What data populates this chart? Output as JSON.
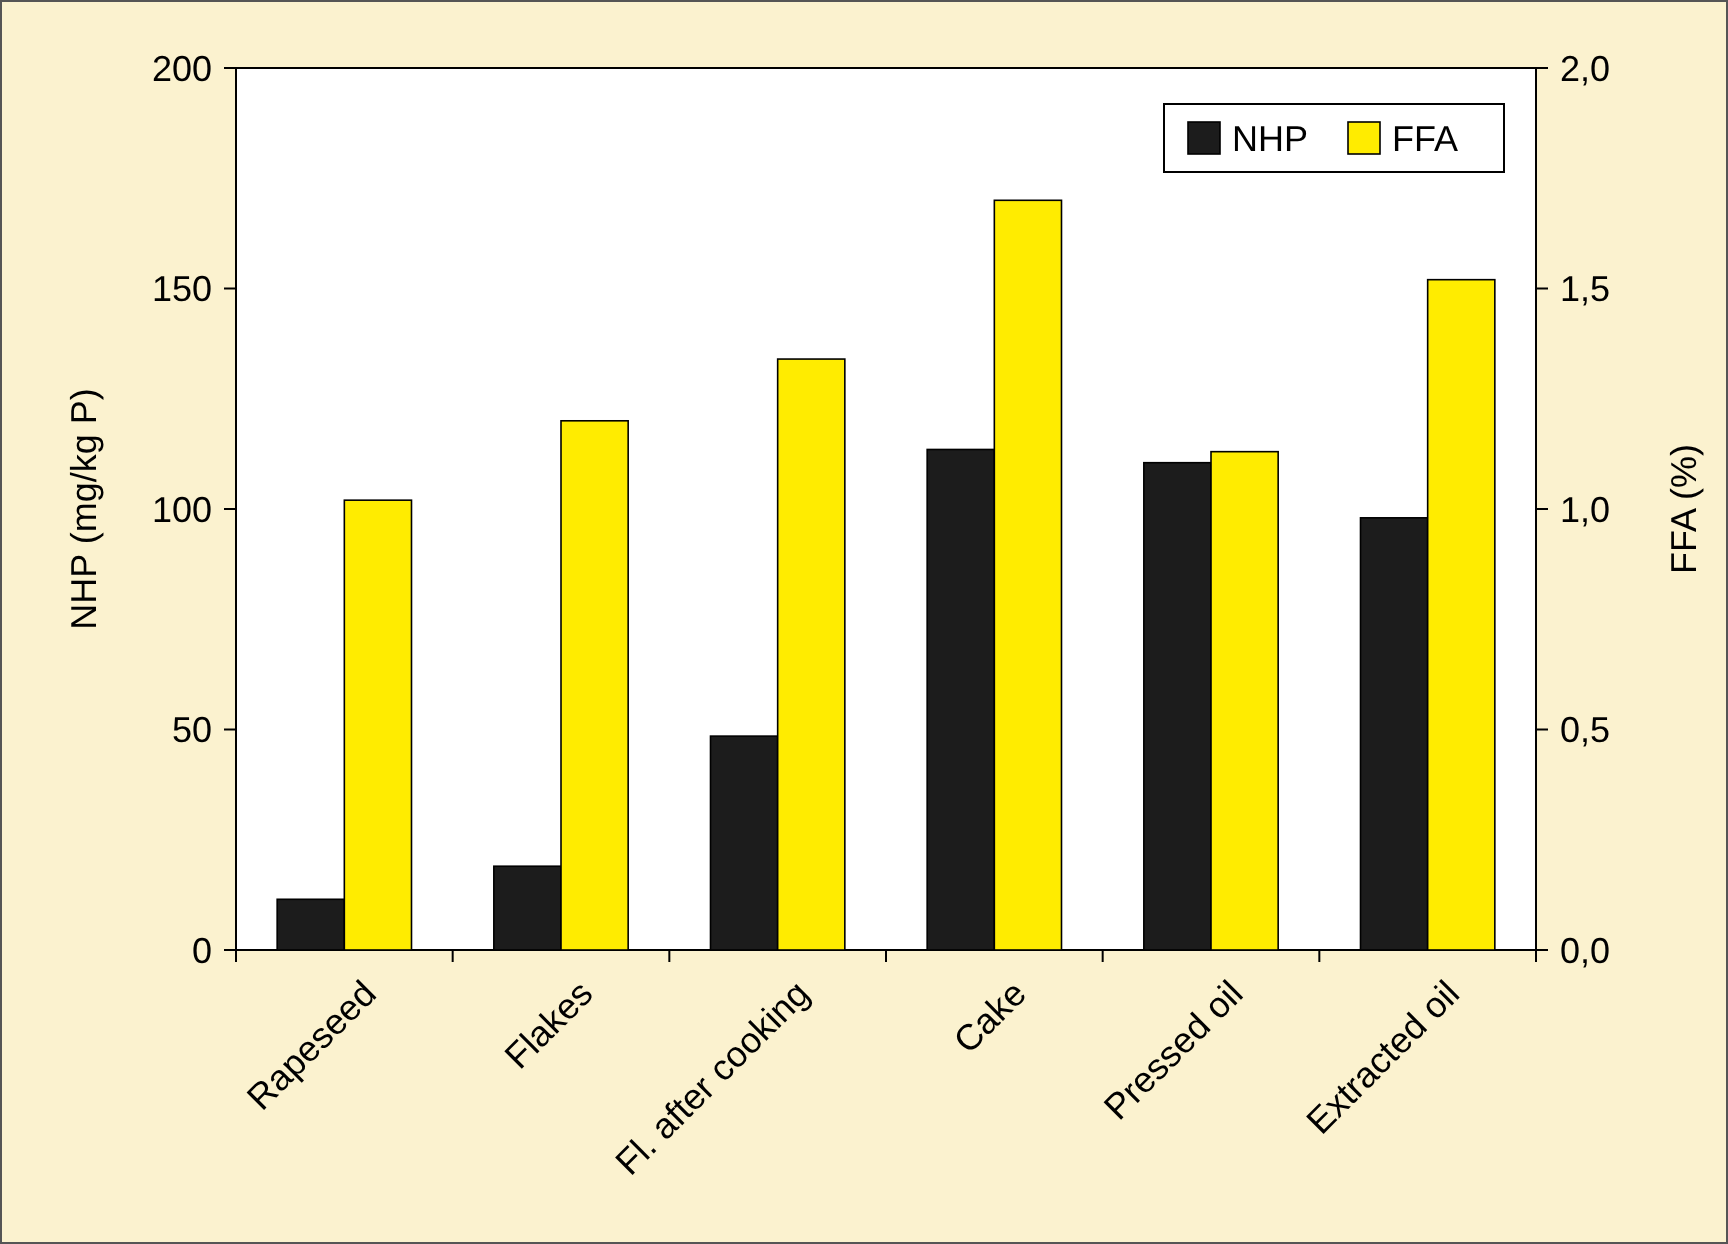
{
  "chart_data": {
    "type": "bar",
    "ylabel": "NHP (mg/kg P)",
    "y2label": "FFA (%)",
    "categories": [
      "Rapeseed",
      "Flakes",
      "Fl. after cooking",
      "Cake",
      "Pressed oil",
      "Extracted oil"
    ],
    "series": [
      {
        "name": "NHP",
        "color": "#1c1c1c",
        "values": [
          11.5,
          19,
          48.5,
          113.5,
          110.5,
          98
        ]
      },
      {
        "name": "FFA",
        "color": "#ffec00",
        "axis": "y2",
        "values": [
          1.02,
          1.2,
          1.34,
          1.7,
          1.13,
          1.52
        ]
      }
    ],
    "ylim": [
      0,
      200
    ],
    "yticks": [
      0,
      50,
      100,
      150,
      200
    ],
    "y2lim": [
      0,
      2
    ],
    "y2ticks": [
      {
        "value": 0,
        "label": "0,0"
      },
      {
        "value": 0.5,
        "label": "0,5"
      },
      {
        "value": 1,
        "label": "1,0"
      },
      {
        "value": 1.5,
        "label": "1,5"
      },
      {
        "value": 2,
        "label": "2,0"
      }
    ],
    "legend": "top right",
    "grid": false
  }
}
